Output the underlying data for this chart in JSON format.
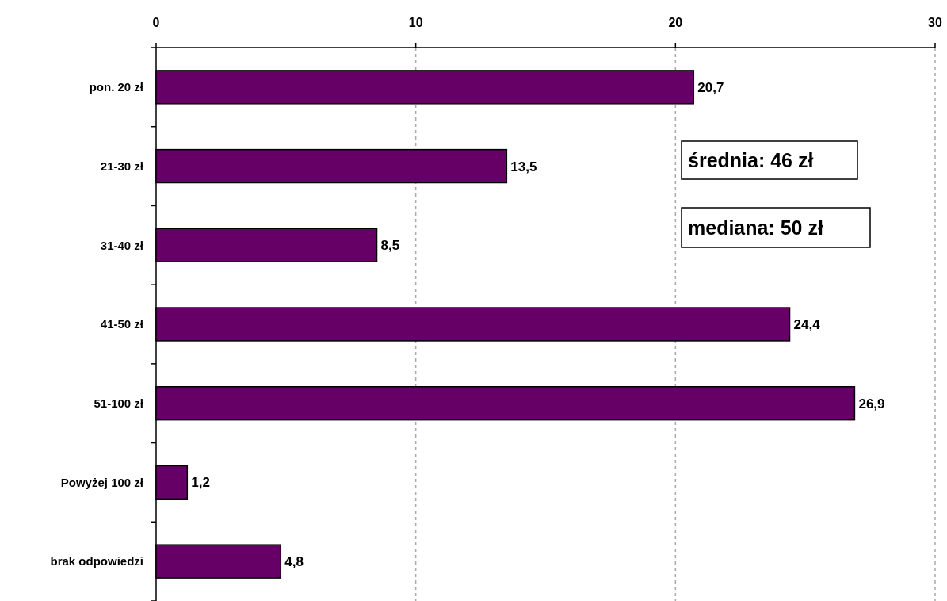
{
  "chart_data": {
    "type": "bar",
    "orientation": "horizontal",
    "categories": [
      "pon. 20 zł",
      "21-30 zł",
      "31-40 zł",
      "41-50 zł",
      "51-100 zł",
      "Powyżej 100 zł",
      "brak odpowiedzi"
    ],
    "values": [
      20.7,
      13.5,
      8.5,
      24.4,
      26.9,
      1.2,
      4.8
    ],
    "value_labels": [
      "20,7",
      "13,5",
      "8,5",
      "24,4",
      "26,9",
      "1,2",
      "4,8"
    ],
    "color": "#660066",
    "xlim": [
      0,
      30
    ],
    "xticks": [
      0,
      10,
      20,
      30
    ],
    "grid": "x",
    "line_style": "dashed",
    "annotations": [
      "średnia: 46 zł",
      "mediana: 50 zł"
    ]
  }
}
